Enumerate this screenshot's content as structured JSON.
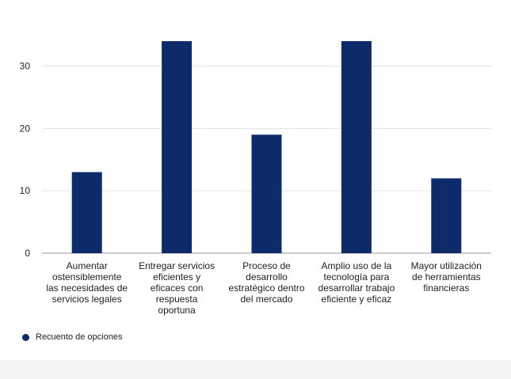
{
  "chart_data": {
    "type": "bar",
    "categories": [
      [
        "Aumentar",
        "ostensiblemente",
        "las necesidades de",
        "servicios legales"
      ],
      [
        "Entregar servicios",
        "eficientes y",
        "eficaces con",
        "respuesta",
        "oportuna"
      ],
      [
        "Proceso de",
        "desarrollo",
        "estratégico dentro",
        "del mercado"
      ],
      [
        "Amplio uso de la",
        "tecnología para",
        "desarrollar trabajo",
        "eficiente y eficaz"
      ],
      [
        "Mayor utilización",
        "de herramientas",
        "financieras"
      ]
    ],
    "series": [
      {
        "name": "Recuento de opciones",
        "values": [
          13,
          34,
          19,
          34,
          12
        ],
        "color": "#0d2a6b"
      }
    ],
    "yticks": [
      0,
      10,
      20,
      30
    ],
    "ylim": [
      0,
      34
    ],
    "grid": true,
    "legend_position": "bottom-left"
  },
  "legend": {
    "label": "Recuento de opciones",
    "color": "#0d2a6b"
  }
}
